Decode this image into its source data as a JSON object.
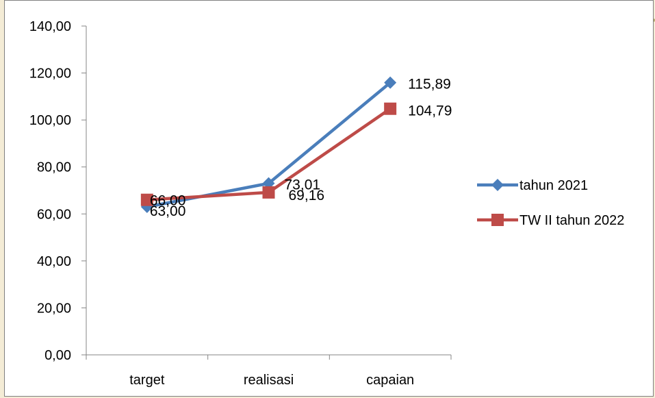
{
  "chart_data": {
    "type": "line",
    "categories": [
      "target",
      "realisasi",
      "capaian"
    ],
    "series": [
      {
        "name": "tahun 2021",
        "values": [
          63.0,
          73.01,
          115.89
        ],
        "labels": [
          "63,00",
          "73,01",
          "115,89"
        ],
        "color": "#4a7ebb",
        "marker": "diamond"
      },
      {
        "name": "TW II tahun 2022",
        "values": [
          66.0,
          69.16,
          104.79
        ],
        "labels": [
          "66,00",
          "69,16",
          "104,79"
        ],
        "color": "#be4b48",
        "marker": "square"
      }
    ],
    "ylim": [
      0,
      140
    ],
    "yticks": [
      0,
      20,
      40,
      60,
      80,
      100,
      120,
      140
    ],
    "ytick_labels": [
      "0,00",
      "20,00",
      "40,00",
      "60,00",
      "80,00",
      "100,00",
      "120,00",
      "140,00"
    ],
    "title": "",
    "xlabel": "",
    "ylabel": "",
    "grid": false,
    "legend": "right"
  }
}
